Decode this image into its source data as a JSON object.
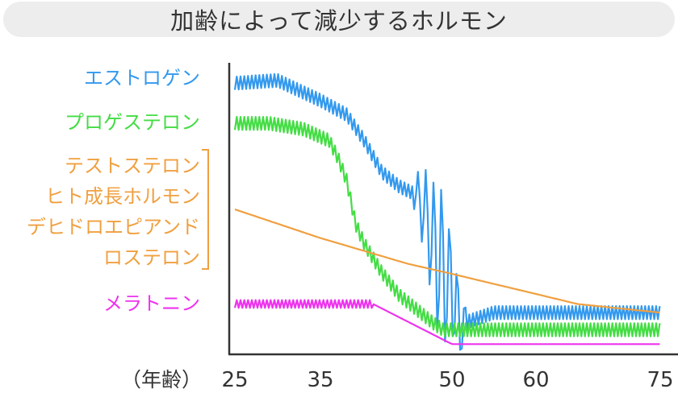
{
  "title": "加齢によって減少するホルモン",
  "colors": {
    "estrogen": "#3399ee",
    "progesterone": "#44dd44",
    "androgens": "#f0a040",
    "melatonin": "#ee33ee",
    "axis": "#333333"
  },
  "chart_data": {
    "type": "line",
    "title": "加齢によって減少するホルモン",
    "xlabel": "（年齢）",
    "ylabel": "",
    "x_ticks": [
      25,
      35,
      50,
      60,
      75
    ],
    "xlim": [
      25,
      75
    ],
    "ylim": [
      0,
      100
    ],
    "grid": false,
    "legend_placement": "left",
    "series": [
      {
        "name": "エストロゲン",
        "key": "estrogen",
        "x": [
          25,
          30,
          35,
          38,
          40,
          42,
          44,
          46,
          47,
          48,
          49,
          50,
          50.5,
          51,
          52,
          55,
          60,
          65,
          70,
          75
        ],
        "y": [
          94,
          95,
          88,
          83,
          74,
          63,
          58,
          55,
          48,
          36,
          28,
          22,
          16,
          9,
          11,
          14,
          14,
          14,
          14,
          14
        ],
        "wobble": 2.5,
        "spiky_range": [
          45.5,
          52
        ]
      },
      {
        "name": "プロゲステロン",
        "key": "progesterone",
        "x": [
          25,
          29,
          33,
          36,
          37,
          38,
          39,
          40,
          42,
          44,
          46,
          48,
          49,
          50,
          60,
          75
        ],
        "y": [
          80,
          80,
          78,
          74,
          68,
          60,
          45,
          38,
          28,
          20,
          15,
          10,
          8,
          8,
          8,
          8
        ],
        "wobble": 2.5
      },
      {
        "name": "テストステロン\nヒト成長ホルモン\nデヒドロエピアンドロステロン",
        "key": "androgens",
        "x": [
          25,
          35,
          45,
          55,
          65,
          75
        ],
        "y": [
          50,
          40,
          31,
          24,
          17,
          14
        ],
        "wobble": 0
      },
      {
        "name": "メラトニン",
        "key": "melatonin",
        "x": [
          25,
          41,
          50,
          75
        ],
        "y": [
          17,
          17,
          3,
          3
        ],
        "wobble": 1.5,
        "wobble_until": 41
      }
    ],
    "legend_lines": {
      "estrogen": [
        "エストロゲン"
      ],
      "progesterone": [
        "プロゲステロン"
      ],
      "androgens": [
        "テストステロン",
        "ヒト成長ホルモン",
        "デヒドロエピアンド",
        "ロステロン"
      ],
      "melatonin": [
        "メラトニン"
      ]
    }
  }
}
